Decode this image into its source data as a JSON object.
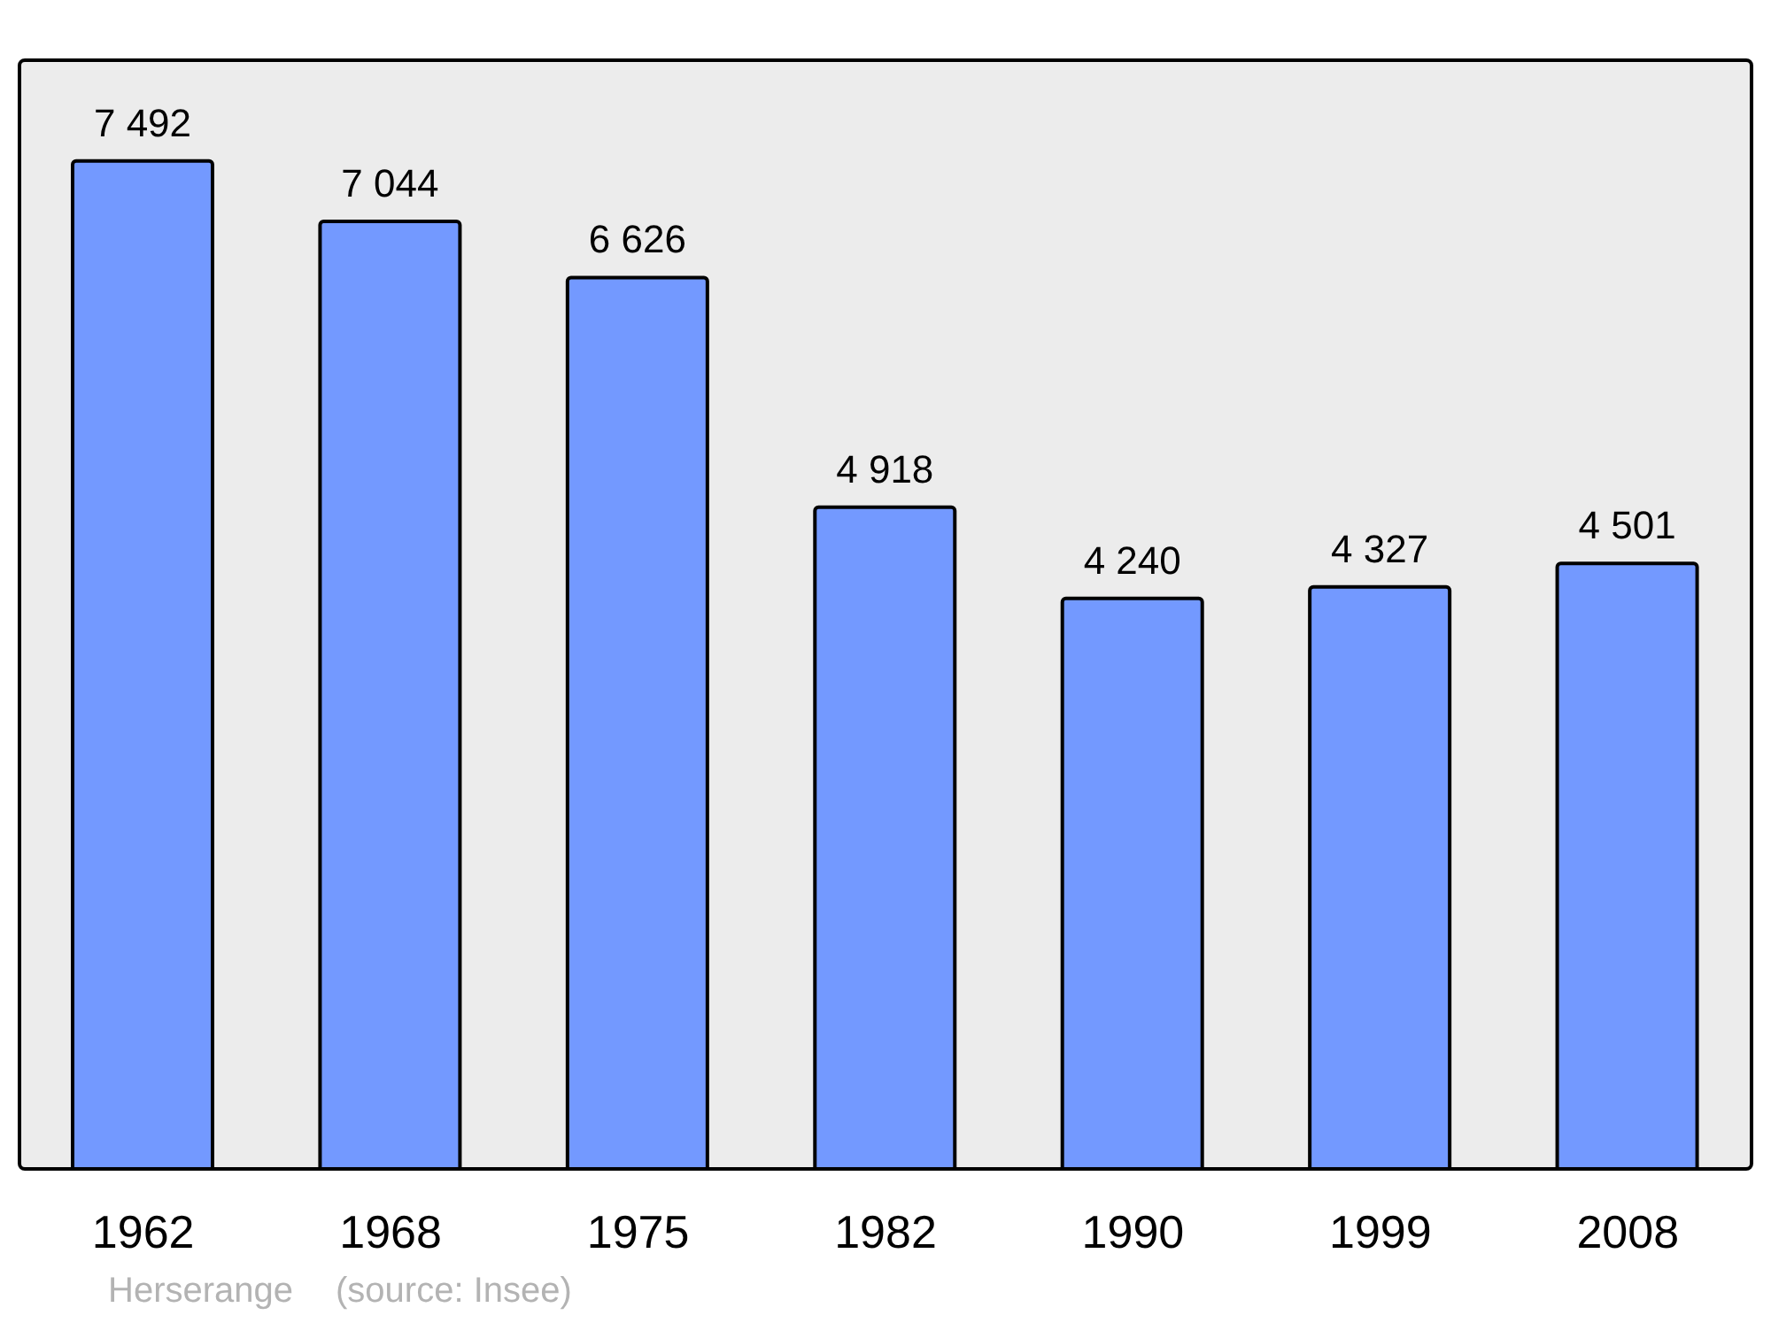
{
  "chart_data": {
    "type": "bar",
    "categories": [
      "1962",
      "1968",
      "1975",
      "1982",
      "1990",
      "1999",
      "2008"
    ],
    "values": [
      7492,
      7044,
      6626,
      4918,
      4240,
      4327,
      4501
    ],
    "value_labels": [
      "7 492",
      "7 044",
      "6 626",
      "4 918",
      "4 240",
      "4 327",
      "4 501"
    ],
    "color": "#7399ff",
    "annotations": [
      "Herserange",
      "(source: Insee)"
    ]
  }
}
